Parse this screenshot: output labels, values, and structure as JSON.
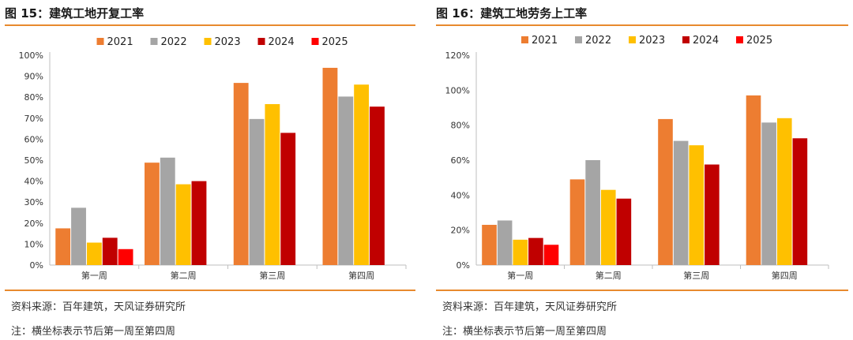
{
  "left": {
    "title": "图 15：建筑工地开复工率",
    "source": "资料来源：百年建筑，天风证券研究所",
    "note": "注：横坐标表示节后第一周至第四周"
  },
  "right": {
    "title": "图 16：建筑工地劳务上工率",
    "source": "资料来源：百年建筑，天风证券研究所",
    "note": "注：横坐标表示节后第一周至第四周"
  },
  "chart_data": [
    {
      "type": "bar",
      "title": "建筑工地开复工率",
      "categories": [
        "第一周",
        "第二周",
        "第三周",
        "第四周"
      ],
      "series": [
        {
          "name": "2021",
          "color": "#ed7d31",
          "values": [
            17.5,
            48.8,
            86.8,
            94.0
          ]
        },
        {
          "name": "2022",
          "color": "#a5a5a5",
          "values": [
            27.3,
            51.2,
            69.6,
            80.3
          ]
        },
        {
          "name": "2023",
          "color": "#ffc000",
          "values": [
            10.7,
            38.5,
            76.7,
            86.0
          ]
        },
        {
          "name": "2024",
          "color": "#c00000",
          "values": [
            13.0,
            40.0,
            63.0,
            75.5
          ]
        },
        {
          "name": "2025",
          "color": "#ff0000",
          "values": [
            7.6,
            null,
            null,
            null
          ]
        }
      ],
      "ylim": [
        0,
        100
      ],
      "yticks": [
        "0%",
        "10%",
        "20%",
        "30%",
        "40%",
        "50%",
        "60%",
        "70%",
        "80%",
        "90%",
        "100%"
      ],
      "legend": "top",
      "grid": false
    },
    {
      "type": "bar",
      "title": "建筑工地劳务上工率",
      "categories": [
        "第一周",
        "第二周",
        "第三周",
        "第四周"
      ],
      "series": [
        {
          "name": "2021",
          "color": "#ed7d31",
          "values": [
            23.0,
            49.0,
            83.5,
            97.0
          ]
        },
        {
          "name": "2022",
          "color": "#a5a5a5",
          "values": [
            25.5,
            60.0,
            71.0,
            81.5
          ]
        },
        {
          "name": "2023",
          "color": "#ffc000",
          "values": [
            14.5,
            43.0,
            68.5,
            84.0
          ]
        },
        {
          "name": "2024",
          "color": "#c00000",
          "values": [
            15.5,
            38.0,
            57.5,
            72.5
          ]
        },
        {
          "name": "2025",
          "color": "#ff0000",
          "values": [
            11.6,
            null,
            null,
            null
          ]
        }
      ],
      "ylim": [
        0,
        120
      ],
      "yticks": [
        "0%",
        "20%",
        "40%",
        "60%",
        "80%",
        "100%",
        "120%"
      ],
      "legend": "top",
      "grid": false
    }
  ]
}
